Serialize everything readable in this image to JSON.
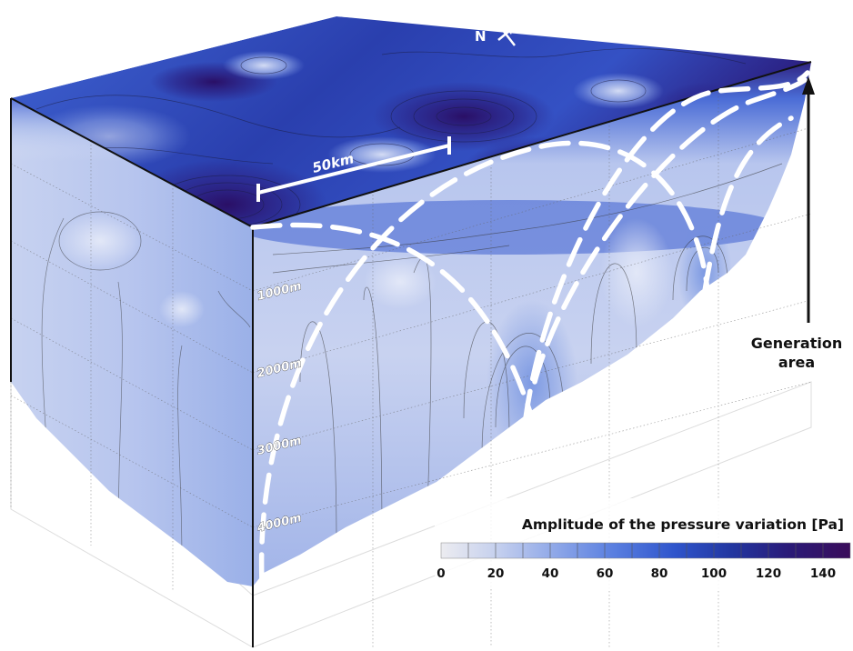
{
  "scale_bar": {
    "label": "50km"
  },
  "north_arrow": {
    "label": "N"
  },
  "depth_labels": [
    "1000m",
    "2000m",
    "3000m",
    "4000m"
  ],
  "generation": {
    "line1": "Generation",
    "line2": "area"
  },
  "colorbar": {
    "title": "Amplitude of the pressure variation [Pa]",
    "ticks": [
      "0",
      "20",
      "40",
      "60",
      "80",
      "100",
      "120",
      "140"
    ],
    "min": 0,
    "max": 150,
    "colors": [
      "#ececf0",
      "#c4cfee",
      "#8ea7e8",
      "#5a7fe0",
      "#2f55cc",
      "#2236a0",
      "#2a1a78",
      "#3a0c5a"
    ]
  }
}
